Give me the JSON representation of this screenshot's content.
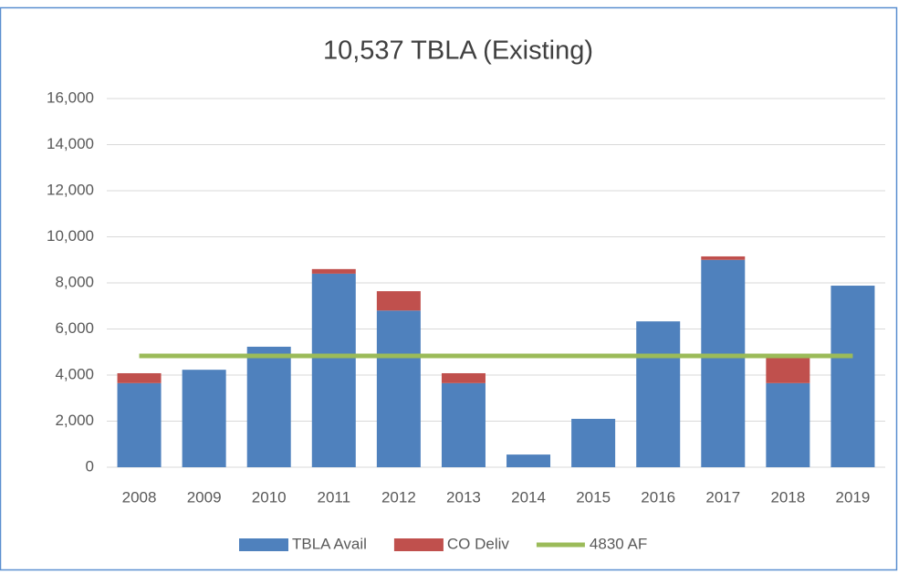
{
  "chart_data": {
    "type": "bar",
    "stacked": true,
    "title": "10,537 TBLA (Existing)",
    "categories": [
      "2008",
      "2009",
      "2010",
      "2011",
      "2012",
      "2013",
      "2014",
      "2015",
      "2016",
      "2017",
      "2018",
      "2019"
    ],
    "series": [
      {
        "name": "TBLA Avail",
        "color": "#4f81bd",
        "values": [
          3650,
          4230,
          5230,
          8400,
          6800,
          3650,
          550,
          2100,
          6330,
          9000,
          3650,
          7880
        ]
      },
      {
        "name": "CO Deliv",
        "color": "#c0504d",
        "values": [
          430,
          0,
          0,
          200,
          840,
          430,
          0,
          0,
          0,
          150,
          1100,
          0
        ]
      },
      {
        "name": "4830 AF",
        "color": "#9bbb59",
        "type": "line",
        "values": [
          4830,
          4830,
          4830,
          4830,
          4830,
          4830,
          4830,
          4830,
          4830,
          4830,
          4830,
          4830
        ]
      }
    ],
    "ylim": [
      0,
      16000
    ],
    "yticks": [
      0,
      {
        "value": 2000,
        "label": "2,000"
      },
      {
        "value": 4000,
        "label": "4,000"
      },
      {
        "value": 6000,
        "label": "6,000"
      },
      {
        "value": 8000,
        "label": "8,000"
      },
      {
        "value": 10000,
        "label": "10,000"
      },
      {
        "value": 12000,
        "label": "12,000"
      },
      {
        "value": 14000,
        "label": "14,000"
      },
      {
        "value": 16000,
        "label": "16,000"
      }
    ],
    "grid": true,
    "legend": "bottom"
  }
}
